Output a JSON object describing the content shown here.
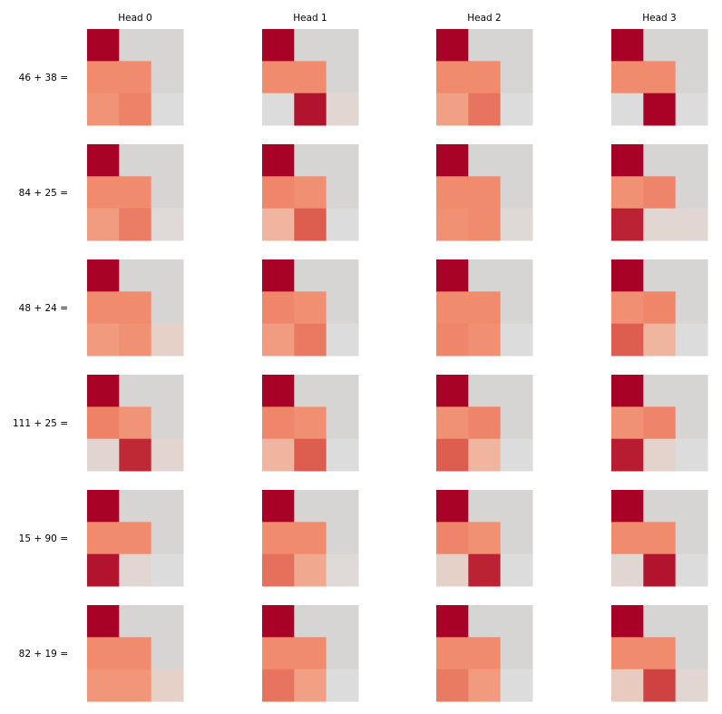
{
  "chart_data": {
    "type": "heatmap",
    "title": "",
    "columns": [
      "Head 0",
      "Head 1",
      "Head 2",
      "Head 3"
    ],
    "rows": [
      "46 + 38 =",
      "84 + 25 =",
      "48 + 24 =",
      "111 + 25 =",
      "15 + 90 =",
      "82 + 19 ="
    ],
    "cell_grid": "3x3 lower-triangular attention map; upper triangle masked",
    "value_range": [
      0,
      1
    ],
    "mask_color": "#d7d5d4",
    "colormap": "coolwarm-red",
    "colorbar": false,
    "grid": false,
    "matrices": [
      [
        [
          [
            1.0
          ],
          [
            0.5,
            0.5
          ],
          [
            0.46,
            0.54,
            0.0
          ]
        ],
        [
          [
            1.0
          ],
          [
            0.5,
            0.5
          ],
          [
            0.0,
            0.95,
            0.05
          ]
        ],
        [
          [
            1.0
          ],
          [
            0.5,
            0.5
          ],
          [
            0.4,
            0.6,
            0.0
          ]
        ],
        [
          [
            1.0
          ],
          [
            0.5,
            0.5
          ],
          [
            0.0,
            1.0,
            0.0
          ]
        ]
      ],
      [
        [
          [
            1.0
          ],
          [
            0.5,
            0.5
          ],
          [
            0.42,
            0.56,
            0.02
          ]
        ],
        [
          [
            1.0
          ],
          [
            0.52,
            0.48
          ],
          [
            0.3,
            0.7,
            0.0
          ]
        ],
        [
          [
            1.0
          ],
          [
            0.5,
            0.5
          ],
          [
            0.47,
            0.5,
            0.03
          ]
        ],
        [
          [
            1.0
          ],
          [
            0.47,
            0.53
          ],
          [
            0.9,
            0.05,
            0.05
          ]
        ]
      ],
      [
        [
          [
            1.0
          ],
          [
            0.5,
            0.5
          ],
          [
            0.43,
            0.47,
            0.1
          ]
        ],
        [
          [
            1.0
          ],
          [
            0.52,
            0.48
          ],
          [
            0.42,
            0.58,
            0.0
          ]
        ],
        [
          [
            1.0
          ],
          [
            0.5,
            0.5
          ],
          [
            0.52,
            0.48,
            0.0
          ]
        ],
        [
          [
            1.0
          ],
          [
            0.48,
            0.52
          ],
          [
            0.7,
            0.3,
            0.0
          ]
        ]
      ],
      [
        [
          [
            1.0
          ],
          [
            0.54,
            0.46
          ],
          [
            0.06,
            0.88,
            0.06
          ]
        ],
        [
          [
            1.0
          ],
          [
            0.52,
            0.48
          ],
          [
            0.3,
            0.7,
            0.0
          ]
        ],
        [
          [
            1.0
          ],
          [
            0.47,
            0.53
          ],
          [
            0.7,
            0.3,
            0.0
          ]
        ],
        [
          [
            1.0
          ],
          [
            0.47,
            0.53
          ],
          [
            0.92,
            0.08,
            0.0
          ]
        ]
      ],
      [
        [
          [
            1.0
          ],
          [
            0.5,
            0.5
          ],
          [
            0.95,
            0.05,
            0.0
          ]
        ],
        [
          [
            1.0
          ],
          [
            0.5,
            0.5
          ],
          [
            0.62,
            0.36,
            0.02
          ]
        ],
        [
          [
            1.0
          ],
          [
            0.53,
            0.47
          ],
          [
            0.1,
            0.9,
            0.0
          ]
        ],
        [
          [
            1.0
          ],
          [
            0.5,
            0.5
          ],
          [
            0.05,
            0.95,
            0.0
          ]
        ]
      ],
      [
        [
          [
            1.0
          ],
          [
            0.5,
            0.5
          ],
          [
            0.45,
            0.45,
            0.1
          ]
        ],
        [
          [
            1.0
          ],
          [
            0.5,
            0.5
          ],
          [
            0.6,
            0.4,
            0.0
          ]
        ],
        [
          [
            1.0
          ],
          [
            0.5,
            0.5
          ],
          [
            0.57,
            0.43,
            0.0
          ]
        ],
        [
          [
            1.0
          ],
          [
            0.5,
            0.5
          ],
          [
            0.15,
            0.8,
            0.05
          ]
        ]
      ]
    ]
  }
}
